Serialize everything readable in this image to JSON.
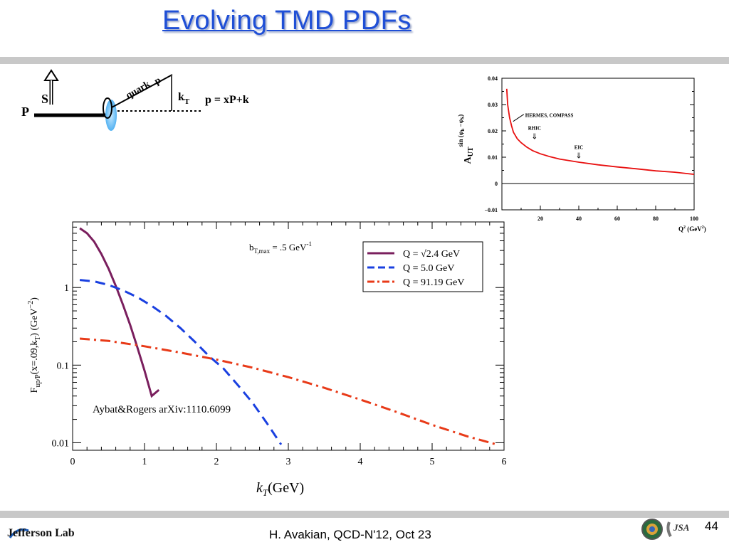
{
  "slide": {
    "title": "Evolving TMD PDFs",
    "footer": "H. Avakian, QCD-N'12,  Oct 23",
    "page_number": "44",
    "logo_text": "Jefferson Lab",
    "jsa_text": "JSA"
  },
  "diagram": {
    "label_P": "P",
    "label_S": "S",
    "label_quark": "quark",
    "label_p": "p",
    "label_kT": "k",
    "label_kT_sub": "T",
    "formula": "p = xP+k"
  },
  "chart_data": [
    {
      "type": "line",
      "ylabel_main": "A",
      "ylabel_sub": "UT",
      "ylabel_sup": "sin (φ",
      "ylabel_sup2": "h",
      "ylabel_sup3": " −φ",
      "ylabel_sup4": "S",
      "ylabel_sup5": ")",
      "xlabel": "Q",
      "xlabel_sup": "2",
      "xlabel_rest": " (GeV",
      "xlabel_sup2": "2",
      "xlabel_end": ")",
      "xlim": [
        0,
        100
      ],
      "ylim": [
        -0.01,
        0.04
      ],
      "xticks": [
        "20",
        "40",
        "60",
        "80",
        "100"
      ],
      "yticks": [
        "−0.01",
        "0",
        "0.01",
        "0.02",
        "0.03",
        "0.04"
      ],
      "annotations": [
        {
          "text": "HERMES, COMPASS",
          "x": 4,
          "y": 0.029
        },
        {
          "text": "RHIC",
          "x": 17,
          "y": 0.019
        },
        {
          "text": "EIC",
          "x": 40,
          "y": 0.0145
        }
      ],
      "series": [
        {
          "color": "#e81010",
          "x": [
            2.5,
            3,
            4,
            5,
            6,
            8,
            10,
            13,
            16,
            20,
            25,
            30,
            40,
            50,
            60,
            70,
            80,
            90,
            100
          ],
          "y": [
            0.036,
            0.03,
            0.025,
            0.022,
            0.0195,
            0.017,
            0.0155,
            0.0138,
            0.0125,
            0.0113,
            0.0102,
            0.0093,
            0.0081,
            0.0071,
            0.0063,
            0.0056,
            0.0048,
            0.0043,
            0.0035
          ]
        }
      ]
    },
    {
      "type": "line",
      "xlabel": "k",
      "xlabel_sub": "T",
      "xlabel_rest": "(GeV)",
      "ylabel": "F",
      "ylabel_sub": "up/P",
      "ylabel_rest": "(x=.09,k",
      "ylabel_sub2": "T",
      "ylabel_rest2": ") (GeV",
      "ylabel_sup": "−2",
      "ylabel_end": ")",
      "scale_y": "log",
      "xlim": [
        0,
        6
      ],
      "ylim": [
        0.008,
        7
      ],
      "xticks": [
        "0",
        "1",
        "2",
        "3",
        "4",
        "5",
        "6"
      ],
      "yticks": [
        "0.01",
        "0.1",
        "1"
      ],
      "annotation_b": "b",
      "annotation_b_sub": "T,max",
      "annotation_b_rest": " = .5 GeV",
      "annotation_b_sup": "-1",
      "citation": "Aybat&Rogers arXiv:1110.6099",
      "legend_position": "top-right",
      "series": [
        {
          "name": "Q = √2.4 GeV",
          "color": "#7a1f5e",
          "dash": "solid",
          "x": [
            0.1,
            0.2,
            0.3,
            0.4,
            0.5,
            0.6,
            0.7,
            0.8,
            0.9,
            1.0,
            1.1,
            1.2
          ],
          "y": [
            5.8,
            5.0,
            3.9,
            2.7,
            1.75,
            1.05,
            0.6,
            0.33,
            0.17,
            0.085,
            0.04,
            0.048
          ]
        },
        {
          "name": "Q = 5.0 GeV",
          "color": "#1a40e0",
          "dash": "dashed",
          "x": [
            0.1,
            0.3,
            0.5,
            0.7,
            0.9,
            1.1,
            1.3,
            1.5,
            1.7,
            1.9,
            2.1,
            2.3,
            2.5,
            2.7,
            2.9
          ],
          "y": [
            1.25,
            1.2,
            1.08,
            0.92,
            0.75,
            0.58,
            0.43,
            0.3,
            0.2,
            0.13,
            0.09,
            0.055,
            0.033,
            0.018,
            0.0095
          ]
        },
        {
          "name": "Q = 91.19 GeV",
          "color": "#e83a18",
          "dash": "dashdot",
          "x": [
            0.1,
            0.5,
            1.0,
            1.5,
            2.0,
            2.5,
            3.0,
            3.5,
            4.0,
            4.5,
            5.0,
            5.5,
            5.9
          ],
          "y": [
            0.22,
            0.205,
            0.175,
            0.145,
            0.118,
            0.093,
            0.07,
            0.051,
            0.036,
            0.025,
            0.017,
            0.012,
            0.0095
          ]
        }
      ]
    }
  ]
}
